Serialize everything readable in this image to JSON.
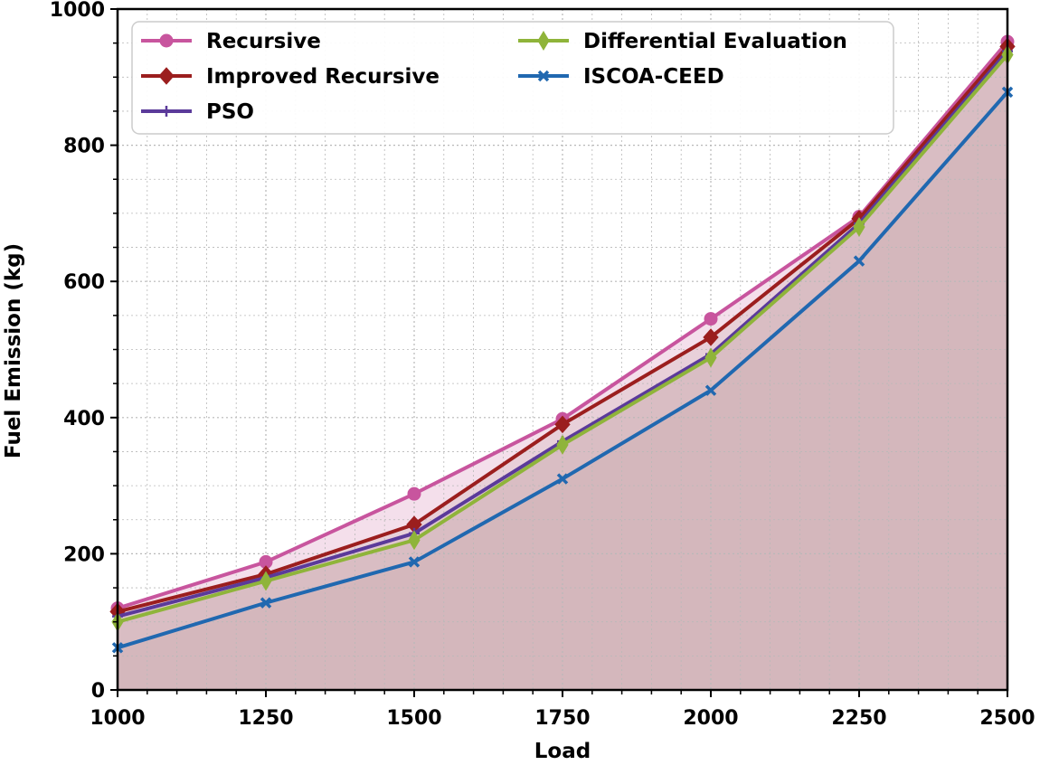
{
  "chart_data": {
    "type": "line",
    "title": "",
    "xlabel": "Load",
    "ylabel": "Fuel Emission (kg)",
    "xlim": [
      1000,
      2500
    ],
    "ylim": [
      0,
      1000
    ],
    "x": [
      1000,
      1250,
      1500,
      1750,
      2000,
      2250,
      2500
    ],
    "xticks": [
      1000,
      1250,
      1500,
      1750,
      2000,
      2250,
      2500
    ],
    "xtick_labels": [
      "1000",
      "1250",
      "1500",
      "1750",
      "2000",
      "2250",
      "2500"
    ],
    "yticks": [
      0,
      200,
      400,
      600,
      800,
      1000
    ],
    "ytick_labels": [
      "0",
      "200",
      "400",
      "600",
      "800",
      "1000"
    ],
    "grid": true,
    "legend_position": "top-left",
    "series": [
      {
        "name": "Recursive",
        "color": "#c8559e",
        "marker": "circle",
        "values": [
          120,
          188,
          288,
          398,
          545,
          695,
          952
        ]
      },
      {
        "name": "Improved Recursive",
        "color": "#9b1e1e",
        "marker": "diamond",
        "values": [
          115,
          170,
          243,
          390,
          518,
          692,
          945
        ]
      },
      {
        "name": "PSO",
        "color": "#5b3a9a",
        "marker": "plus",
        "values": [
          108,
          165,
          230,
          365,
          493,
          685,
          938
        ]
      },
      {
        "name": "Differential Evaluation",
        "color": "#8fb43a",
        "marker": "thin-diamond",
        "values": [
          100,
          160,
          220,
          360,
          488,
          680,
          933
        ]
      },
      {
        "name": "ISCOA-CEED",
        "color": "#2068b0",
        "marker": "x",
        "values": [
          62,
          128,
          188,
          310,
          440,
          630,
          878
        ]
      }
    ],
    "fill_color": "#c8a9ab"
  }
}
